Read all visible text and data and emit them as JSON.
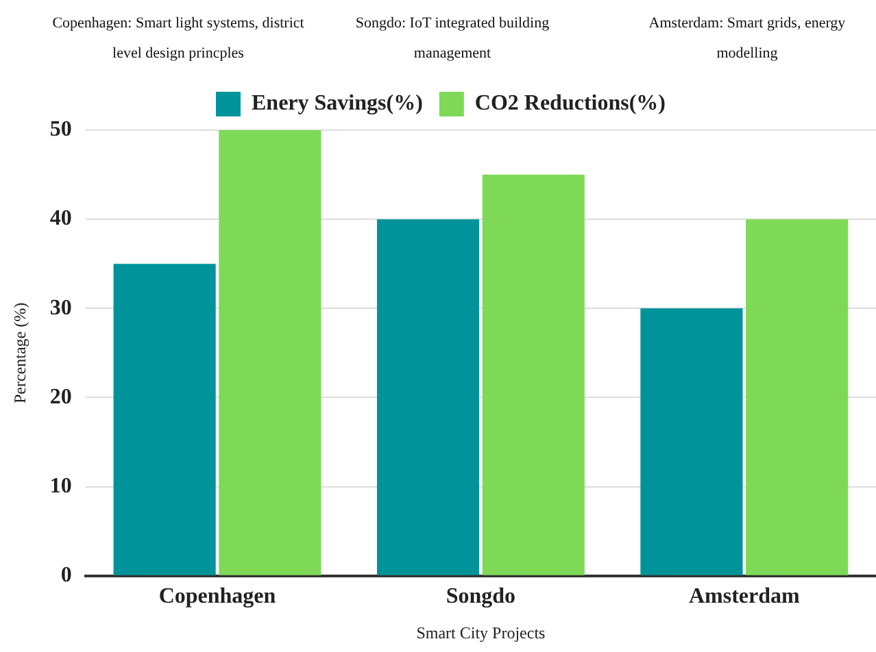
{
  "chart_data": {
    "type": "bar",
    "categories": [
      "Copenhagen",
      "Songdo",
      "Amsterdam"
    ],
    "series": [
      {
        "name": "Enery Savings(%)",
        "color": "#00949a",
        "values": [
          35,
          40,
          30
        ]
      },
      {
        "name": "CO2 Reductions(%)",
        "color": "#7ed957",
        "values": [
          50,
          45,
          40
        ]
      }
    ],
    "xlabel": "Smart City Projects",
    "ylabel": "Percentage (%)",
    "ylim": [
      0,
      50
    ],
    "yticks": [
      0,
      10,
      20,
      30,
      40,
      50
    ],
    "grid": "y",
    "legend": "top",
    "annotations": [
      "Copenhagen: Smart light systems, district level design princples",
      "Songdo: IoT integrated building management",
      "Amsterdam: Smart grids, energy modelling"
    ]
  }
}
